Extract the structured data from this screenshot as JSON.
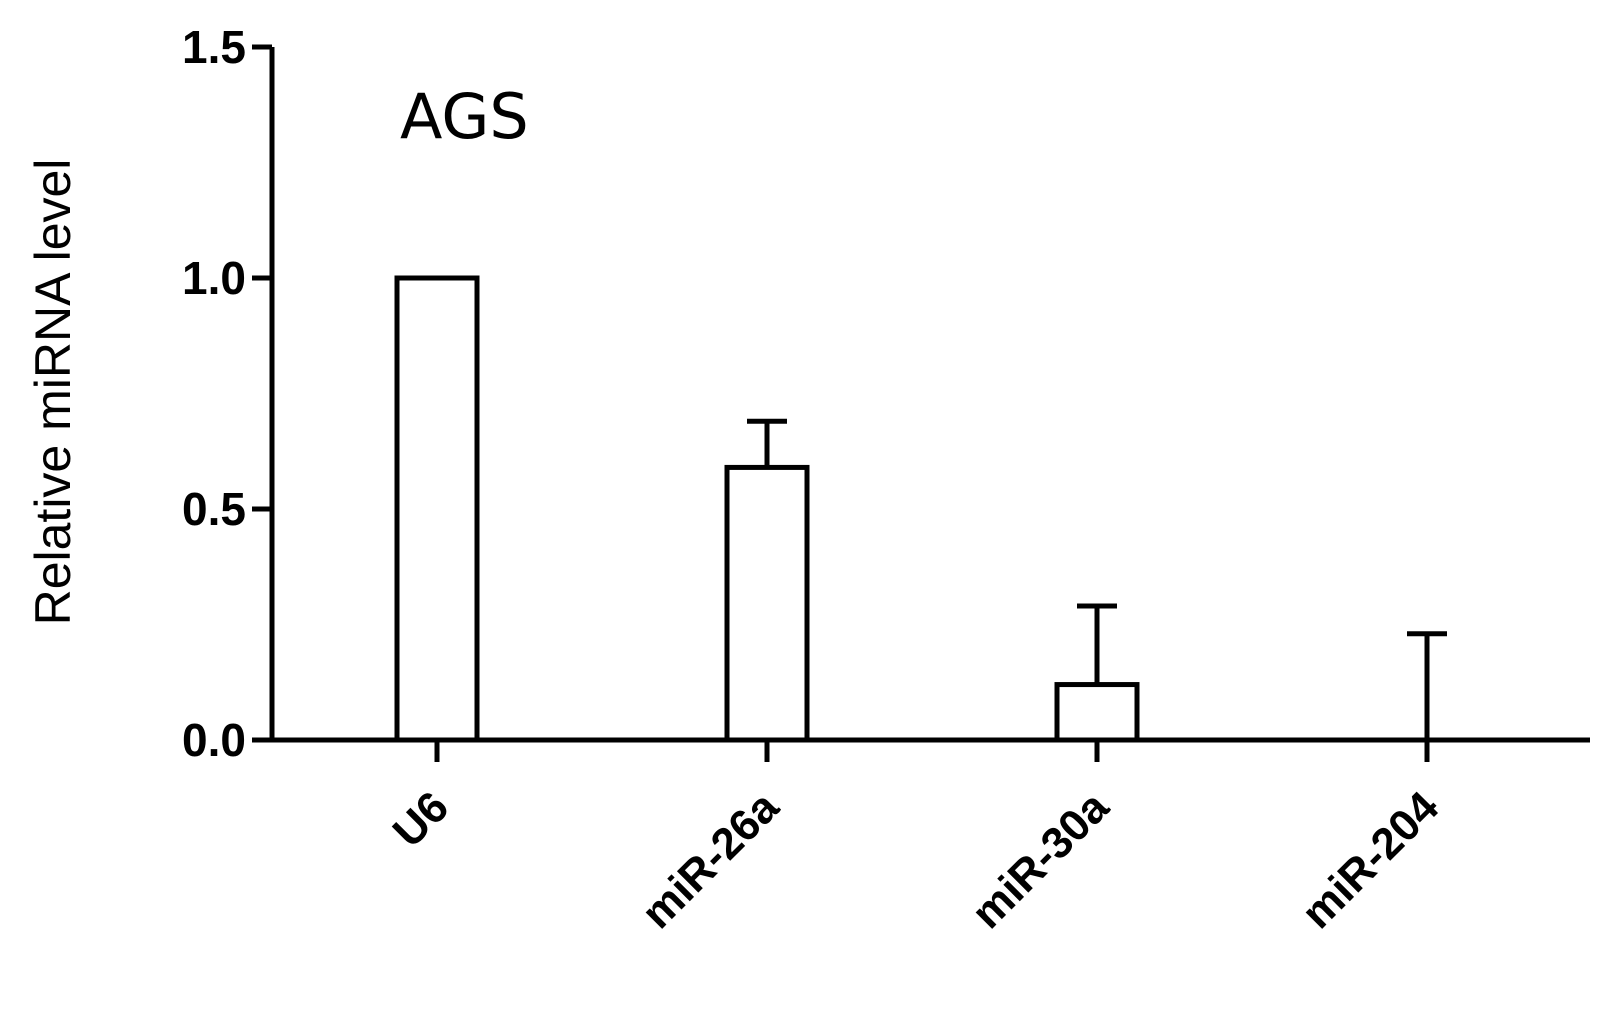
{
  "chart_data": {
    "type": "bar",
    "title": "",
    "annotation": "AGS",
    "ylabel": "Relative miRNA level",
    "xlabel": "",
    "categories": [
      "U6",
      "miR-26a",
      "miR-30a",
      "miR-204"
    ],
    "values": [
      1.0,
      0.59,
      0.12,
      0.0
    ],
    "error_upper": [
      0.0,
      0.1,
      0.17,
      0.23
    ],
    "ylim": [
      0,
      1.5
    ],
    "yticks": [
      0.0,
      0.5,
      1.0,
      1.5
    ],
    "ytick_labels": [
      "0.0",
      "0.5",
      "1.0",
      "1.5"
    ],
    "grid": false,
    "legend": "none",
    "bar_fill": "#ffffff",
    "bar_stroke": "#000000"
  }
}
